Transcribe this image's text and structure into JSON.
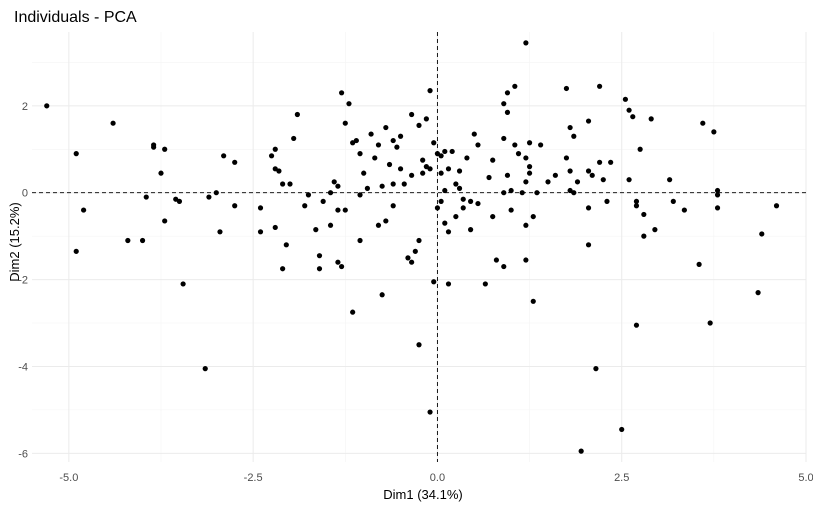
{
  "chart_data": {
    "type": "scatter",
    "title": "Individuals - PCA",
    "xlabel": "Dim1 (34.1%)",
    "ylabel": "Dim2 (15.2%)",
    "xlim": [
      -5.5,
      5.0
    ],
    "ylim": [
      -6.2,
      3.7
    ],
    "x_ticks": [
      -5.0,
      -2.5,
      0.0,
      2.5,
      5.0
    ],
    "x_tick_labels": [
      "-5.0",
      "-2.5",
      "0.0",
      "2.5",
      "5.0"
    ],
    "y_ticks": [
      -6,
      -4,
      -2,
      0,
      2
    ],
    "y_tick_labels": [
      "-6",
      "-4",
      "-2",
      "0",
      "2"
    ],
    "grid": true,
    "reference_lines": {
      "x": 0,
      "y": 0,
      "style": "dashed"
    },
    "point_color": "#000000",
    "points": [
      [
        -5.3,
        2.0
      ],
      [
        -4.9,
        0.9
      ],
      [
        -4.9,
        -1.35
      ],
      [
        -4.8,
        -0.4
      ],
      [
        -4.4,
        1.6
      ],
      [
        -4.2,
        -1.1
      ],
      [
        -4.0,
        -1.1
      ],
      [
        -3.95,
        -0.1
      ],
      [
        -3.85,
        1.05
      ],
      [
        -3.85,
        1.1
      ],
      [
        -3.75,
        0.45
      ],
      [
        -3.7,
        1.0
      ],
      [
        -3.7,
        -0.65
      ],
      [
        -3.55,
        -0.15
      ],
      [
        -3.5,
        -0.2
      ],
      [
        -3.45,
        -2.1
      ],
      [
        -3.15,
        -4.05
      ],
      [
        -3.1,
        -0.1
      ],
      [
        -3.0,
        0.0
      ],
      [
        -2.95,
        -0.9
      ],
      [
        -2.9,
        0.85
      ],
      [
        -2.75,
        0.7
      ],
      [
        -2.75,
        -0.3
      ],
      [
        -2.4,
        -0.35
      ],
      [
        -2.4,
        -0.9
      ],
      [
        -2.25,
        0.85
      ],
      [
        -2.2,
        1.0
      ],
      [
        -2.2,
        0.55
      ],
      [
        -2.2,
        -0.8
      ],
      [
        -2.15,
        0.5
      ],
      [
        -2.1,
        0.2
      ],
      [
        -2.1,
        -1.75
      ],
      [
        -2.05,
        -1.2
      ],
      [
        -2.0,
        0.2
      ],
      [
        -1.95,
        1.25
      ],
      [
        -1.9,
        1.8
      ],
      [
        -1.8,
        -0.3
      ],
      [
        -1.75,
        -0.05
      ],
      [
        -1.65,
        -0.85
      ],
      [
        -1.6,
        -1.45
      ],
      [
        -1.6,
        -1.75
      ],
      [
        -1.55,
        -0.2
      ],
      [
        -1.45,
        0.0
      ],
      [
        -1.45,
        -0.75
      ],
      [
        -1.4,
        0.25
      ],
      [
        -1.35,
        0.15
      ],
      [
        -1.35,
        -0.4
      ],
      [
        -1.35,
        -1.6
      ],
      [
        -1.3,
        -1.7
      ],
      [
        -1.25,
        1.6
      ],
      [
        -1.3,
        2.3
      ],
      [
        -1.25,
        -0.4
      ],
      [
        -1.2,
        2.05
      ],
      [
        -1.15,
        1.15
      ],
      [
        -1.15,
        -2.75
      ],
      [
        -1.1,
        1.2
      ],
      [
        -1.05,
        0.9
      ],
      [
        -1.05,
        -0.05
      ],
      [
        -1.05,
        -1.1
      ],
      [
        -1.0,
        0.45
      ],
      [
        -0.95,
        0.1
      ],
      [
        -0.9,
        1.35
      ],
      [
        -0.85,
        0.8
      ],
      [
        -0.8,
        1.1
      ],
      [
        -0.8,
        -0.75
      ],
      [
        -0.75,
        -2.35
      ],
      [
        -0.75,
        0.15
      ],
      [
        -0.7,
        1.5
      ],
      [
        -0.7,
        -0.65
      ],
      [
        -0.65,
        0.65
      ],
      [
        -0.6,
        1.2
      ],
      [
        -0.6,
        0.2
      ],
      [
        -0.6,
        -0.3
      ],
      [
        -0.55,
        1.05
      ],
      [
        -0.5,
        1.3
      ],
      [
        -0.5,
        0.55
      ],
      [
        -0.45,
        0.2
      ],
      [
        -0.4,
        -1.5
      ],
      [
        -0.35,
        1.8
      ],
      [
        -0.35,
        0.4
      ],
      [
        -0.35,
        -1.6
      ],
      [
        -0.3,
        -1.35
      ],
      [
        -0.25,
        1.55
      ],
      [
        -0.2,
        0.75
      ],
      [
        -0.2,
        0.45
      ],
      [
        -0.25,
        -1.1
      ],
      [
        -0.25,
        -3.5
      ],
      [
        -0.15,
        1.7
      ],
      [
        -0.15,
        0.6
      ],
      [
        -0.1,
        2.35
      ],
      [
        -0.1,
        0.55
      ],
      [
        -0.1,
        -5.05
      ],
      [
        -0.05,
        1.15
      ],
      [
        -0.05,
        -2.05
      ],
      [
        0.0,
        0.9
      ],
      [
        0.0,
        -0.35
      ],
      [
        0.05,
        0.85
      ],
      [
        0.05,
        0.45
      ],
      [
        0.05,
        -0.2
      ],
      [
        0.1,
        0.95
      ],
      [
        0.1,
        0.05
      ],
      [
        0.1,
        -0.7
      ],
      [
        0.15,
        0.55
      ],
      [
        0.15,
        -0.9
      ],
      [
        0.15,
        -2.1
      ],
      [
        0.2,
        0.95
      ],
      [
        0.25,
        0.2
      ],
      [
        0.25,
        -0.55
      ],
      [
        0.3,
        0.5
      ],
      [
        0.3,
        0.1
      ],
      [
        0.35,
        -0.15
      ],
      [
        0.35,
        -0.35
      ],
      [
        0.4,
        0.8
      ],
      [
        0.45,
        -0.85
      ],
      [
        0.45,
        -0.2
      ],
      [
        0.5,
        1.35
      ],
      [
        0.55,
        -0.25
      ],
      [
        0.55,
        1.1
      ],
      [
        0.65,
        -2.1
      ],
      [
        0.7,
        0.35
      ],
      [
        0.75,
        0.75
      ],
      [
        0.75,
        -0.55
      ],
      [
        0.8,
        -1.55
      ],
      [
        0.9,
        -1.7
      ],
      [
        0.9,
        2.05
      ],
      [
        0.9,
        1.25
      ],
      [
        0.9,
        0.0
      ],
      [
        0.95,
        2.3
      ],
      [
        0.95,
        1.85
      ],
      [
        0.95,
        0.4
      ],
      [
        1.0,
        -0.4
      ],
      [
        1.0,
        0.05
      ],
      [
        1.05,
        2.45
      ],
      [
        1.05,
        1.1
      ],
      [
        1.1,
        0.9
      ],
      [
        1.15,
        0.0
      ],
      [
        1.2,
        0.8
      ],
      [
        1.2,
        0.25
      ],
      [
        1.2,
        -0.75
      ],
      [
        1.2,
        -1.55
      ],
      [
        1.2,
        3.45
      ],
      [
        1.25,
        1.15
      ],
      [
        1.25,
        0.6
      ],
      [
        1.25,
        0.45
      ],
      [
        1.3,
        -0.55
      ],
      [
        1.3,
        -2.5
      ],
      [
        1.35,
        0.0
      ],
      [
        1.4,
        1.1
      ],
      [
        1.5,
        0.25
      ],
      [
        1.6,
        0.4
      ],
      [
        1.75,
        2.4
      ],
      [
        1.75,
        0.8
      ],
      [
        1.8,
        1.5
      ],
      [
        1.8,
        0.5
      ],
      [
        1.8,
        0.05
      ],
      [
        1.85,
        1.3
      ],
      [
        1.85,
        0.0
      ],
      [
        1.9,
        0.25
      ],
      [
        1.95,
        -5.95
      ],
      [
        2.05,
        0.5
      ],
      [
        2.05,
        -0.35
      ],
      [
        2.05,
        -1.2
      ],
      [
        2.05,
        1.65
      ],
      [
        2.1,
        0.4
      ],
      [
        2.15,
        -4.05
      ],
      [
        2.2,
        2.45
      ],
      [
        2.25,
        0.3
      ],
      [
        2.2,
        0.7
      ],
      [
        2.3,
        -0.2
      ],
      [
        2.35,
        0.7
      ],
      [
        2.5,
        -5.45
      ],
      [
        2.55,
        2.15
      ],
      [
        2.6,
        1.9
      ],
      [
        2.6,
        0.3
      ],
      [
        2.65,
        1.75
      ],
      [
        2.7,
        -0.2
      ],
      [
        2.7,
        -0.3
      ],
      [
        2.7,
        -3.05
      ],
      [
        2.75,
        1.0
      ],
      [
        2.8,
        -0.5
      ],
      [
        2.8,
        -1.0
      ],
      [
        2.9,
        1.7
      ],
      [
        2.95,
        -0.85
      ],
      [
        3.15,
        0.3
      ],
      [
        3.2,
        -0.2
      ],
      [
        3.35,
        -0.4
      ],
      [
        3.55,
        -1.65
      ],
      [
        3.6,
        1.6
      ],
      [
        3.7,
        -3.0
      ],
      [
        3.75,
        1.4
      ],
      [
        3.8,
        0.05
      ],
      [
        3.8,
        -0.05
      ],
      [
        3.8,
        -0.35
      ],
      [
        4.35,
        -2.3
      ],
      [
        4.4,
        -0.95
      ],
      [
        4.6,
        -0.3
      ]
    ]
  }
}
